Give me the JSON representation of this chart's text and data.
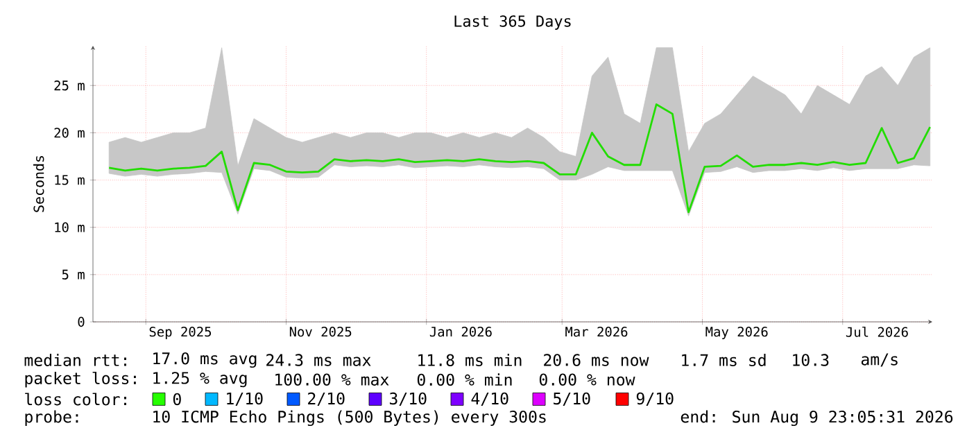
{
  "chart_data": {
    "type": "line",
    "title": "Last 365 Days",
    "ylabel": "Seconds",
    "x": [
      "2025-08-16",
      "2025-08-23",
      "2025-08-30",
      "2025-09-06",
      "2025-09-13",
      "2025-09-20",
      "2025-09-27",
      "2025-10-04",
      "2025-10-11",
      "2025-10-18",
      "2025-10-25",
      "2025-11-01",
      "2025-11-08",
      "2025-11-15",
      "2025-11-22",
      "2025-11-29",
      "2025-12-06",
      "2025-12-13",
      "2025-12-20",
      "2025-12-27",
      "2026-01-03",
      "2026-01-10",
      "2026-01-17",
      "2026-01-24",
      "2026-01-31",
      "2026-02-07",
      "2026-02-14",
      "2026-02-21",
      "2026-02-28",
      "2026-03-07",
      "2026-03-14",
      "2026-03-21",
      "2026-03-28",
      "2026-04-04",
      "2026-04-11",
      "2026-04-18",
      "2026-04-25",
      "2026-05-02",
      "2026-05-09",
      "2026-05-16",
      "2026-05-23",
      "2026-05-30",
      "2026-06-06",
      "2026-06-13",
      "2026-06-20",
      "2026-06-27",
      "2026-07-04",
      "2026-07-11",
      "2026-07-18",
      "2026-07-25",
      "2026-08-01",
      "2026-08-08"
    ],
    "series": [
      {
        "color": "#22dd00",
        "values": [
          16.3,
          16.0,
          16.2,
          16.0,
          16.2,
          16.3,
          16.5,
          18.0,
          11.8,
          16.8,
          16.6,
          15.9,
          15.8,
          15.9,
          17.2,
          17.0,
          17.1,
          17.0,
          17.2,
          16.9,
          17.0,
          17.1,
          17.0,
          17.2,
          17.0,
          16.9,
          17.0,
          16.8,
          15.6,
          15.6,
          20.0,
          17.5,
          16.6,
          16.6,
          23.0,
          22.0,
          11.6,
          16.4,
          16.5,
          17.6,
          16.4,
          16.6,
          16.6,
          16.8,
          16.6,
          16.9,
          16.6,
          16.8,
          20.5,
          16.8,
          17.3,
          20.6
        ],
        "lower": [
          15.7,
          15.4,
          15.6,
          15.4,
          15.6,
          15.7,
          15.9,
          15.8,
          11.4,
          16.2,
          16.0,
          15.3,
          15.2,
          15.3,
          16.6,
          16.4,
          16.5,
          16.4,
          16.6,
          16.3,
          16.4,
          16.5,
          16.4,
          16.6,
          16.4,
          16.3,
          16.4,
          16.2,
          15.0,
          15.0,
          15.6,
          16.4,
          16.0,
          16.0,
          16.0,
          16.0,
          11.2,
          15.8,
          15.9,
          16.4,
          15.8,
          16.0,
          16.0,
          16.2,
          16.0,
          16.3,
          16.0,
          16.2,
          16.2,
          16.2,
          16.6,
          16.5
        ],
        "upper": [
          19.0,
          19.5,
          19.0,
          19.5,
          20.0,
          20.0,
          20.5,
          29.0,
          16.5,
          21.5,
          20.5,
          19.5,
          19.0,
          19.5,
          20.0,
          19.5,
          20.0,
          20.0,
          19.5,
          20.0,
          20.0,
          19.5,
          20.0,
          19.5,
          20.0,
          19.5,
          20.5,
          19.5,
          18.0,
          17.5,
          26.0,
          28.0,
          22.0,
          21.0,
          29.0,
          29.0,
          18.0,
          21.0,
          22.0,
          24.0,
          26.0,
          25.0,
          24.0,
          22.0,
          25.0,
          24.0,
          23.0,
          26.0,
          27.0,
          25.0,
          28.0,
          29.0
        ]
      }
    ],
    "xlim": [
      "2025-08-09",
      "2026-08-09"
    ],
    "xticks": [
      {
        "value": "2025-09-01",
        "label": null
      },
      {
        "value": "2025-11-01",
        "label": null
      },
      {
        "value": "2026-01-01",
        "label": null
      },
      {
        "value": "2026-03-01",
        "label": null
      },
      {
        "value": "2026-05-01",
        "label": null
      },
      {
        "value": "2026-07-01",
        "label": null
      },
      {
        "value": "2025-09-16",
        "label": "Sep 2025"
      },
      {
        "value": "2025-11-16",
        "label": "Nov 2025"
      },
      {
        "value": "2026-01-16",
        "label": "Jan 2026"
      },
      {
        "value": "2026-03-16",
        "label": "Mar 2026"
      },
      {
        "value": "2026-05-16",
        "label": "May 2026"
      },
      {
        "value": "2026-07-16",
        "label": "Jul 2026"
      }
    ],
    "ylim": [
      0,
      29.2
    ],
    "yticks": [
      0,
      {
        "value": 5,
        "label": "5 m"
      },
      {
        "value": 10,
        "label": "10 m"
      },
      {
        "value": 15,
        "label": "15 m"
      },
      {
        "value": 20,
        "label": "20 m"
      },
      {
        "value": 25,
        "label": "25 m"
      }
    ],
    "grid": true,
    "annotations": [
      "median rtt:",
      "17.0 ms avg",
      "24.3 ms max",
      "11.8 ms min",
      "20.6 ms now",
      "1.7 ms sd",
      "10.3",
      "am/s",
      "packet loss:",
      "1.25 % avg",
      "100.00 % max",
      "0.00 % min",
      "0.00 % now",
      "loss color:",
      "0",
      "1/10",
      "2/10",
      "3/10",
      "4/10",
      "5/10",
      "9/10",
      "probe:",
      "10 ICMP Echo Pings (500 Bytes) every 300s",
      "end: Sun Aug 9 23:05:31 2026"
    ]
  }
}
